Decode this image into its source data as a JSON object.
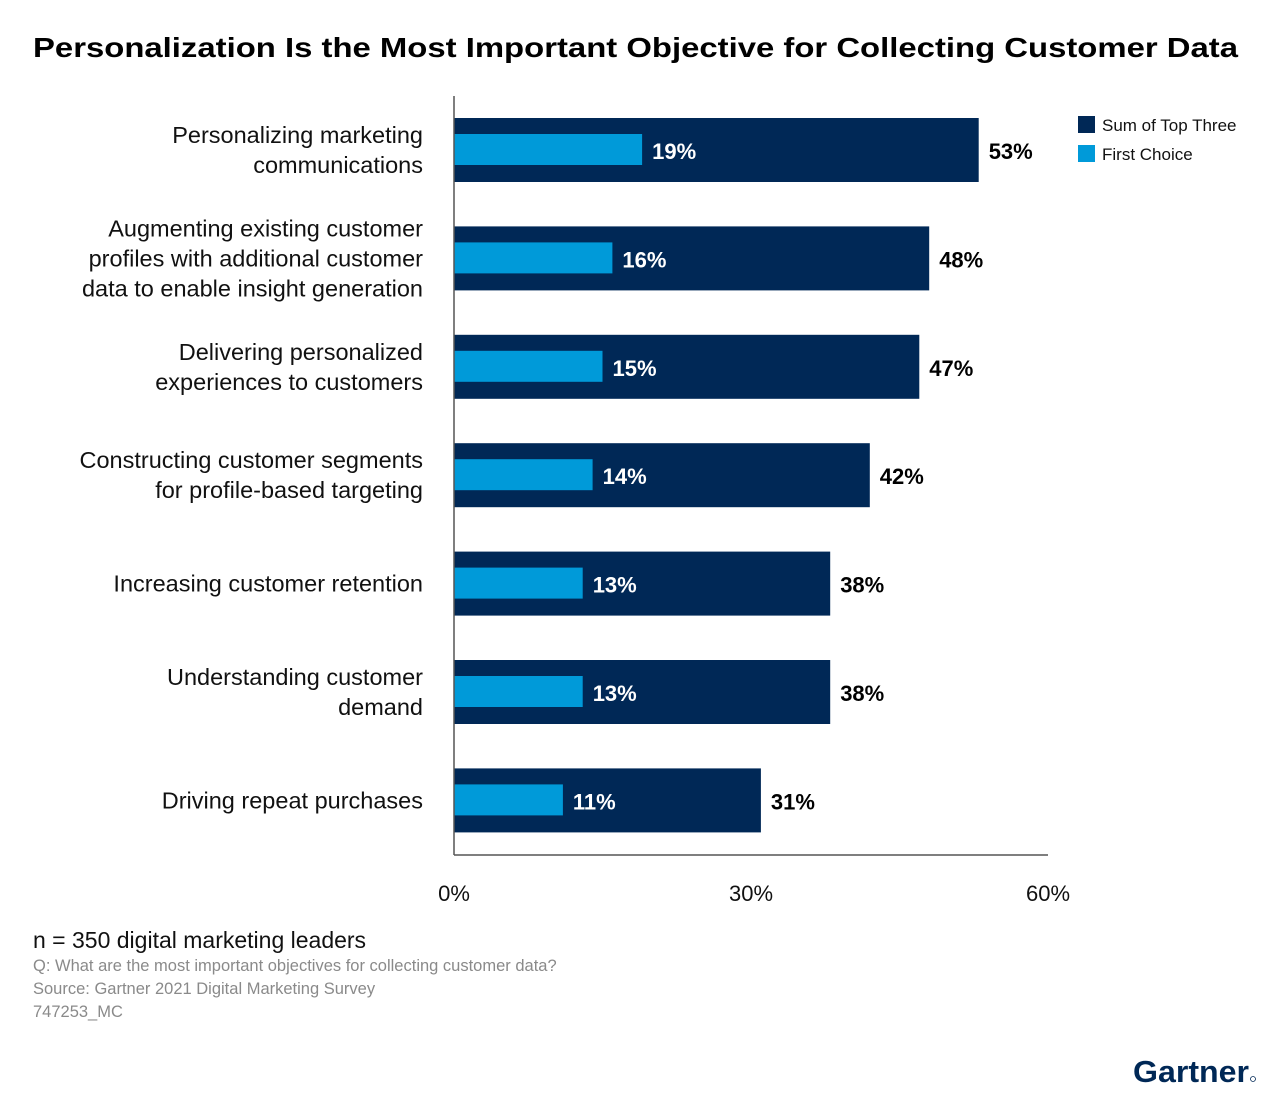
{
  "chart_data": {
    "type": "bar",
    "orientation": "horizontal",
    "title": "Personalization Is the Most Important Objective for Collecting Customer Data",
    "categories": [
      [
        "Personalizing marketing",
        "communications"
      ],
      [
        "Augmenting existing customer",
        "profiles with additional customer",
        "data to enable insight generation"
      ],
      [
        "Delivering personalized",
        "experiences to customers"
      ],
      [
        "Constructing customer segments",
        "for profile-based targeting"
      ],
      [
        "Increasing customer retention"
      ],
      [
        "Understanding customer",
        "demand"
      ],
      [
        "Driving repeat purchases"
      ]
    ],
    "series": [
      {
        "name": "Sum of Top Three",
        "color": "#002856",
        "values": [
          53,
          48,
          47,
          42,
          38,
          38,
          31
        ],
        "labels": [
          "53%",
          "48%",
          "47%",
          "42%",
          "38%",
          "38%",
          "31%"
        ]
      },
      {
        "name": "First Choice",
        "color": "#009ad9",
        "values": [
          19,
          16,
          15,
          14,
          13,
          13,
          11
        ],
        "labels": [
          "19%",
          "16%",
          "15%",
          "14%",
          "13%",
          "13%",
          "11%"
        ]
      }
    ],
    "xlim": [
      0,
      60
    ],
    "xticks": [
      "0%",
      "30%",
      "60%"
    ],
    "xtick_values": [
      0,
      30,
      60
    ],
    "grid": false,
    "legend_position": "top-right"
  },
  "footer": {
    "sample": "n = 350 digital marketing leaders",
    "question": "Q: What are the most important objectives for collecting customer data?",
    "source": "Source: Gartner 2021 Digital Marketing Survey",
    "code": "747253_MC"
  },
  "logo": {
    "text": "Gartner",
    "color": "#002856"
  }
}
